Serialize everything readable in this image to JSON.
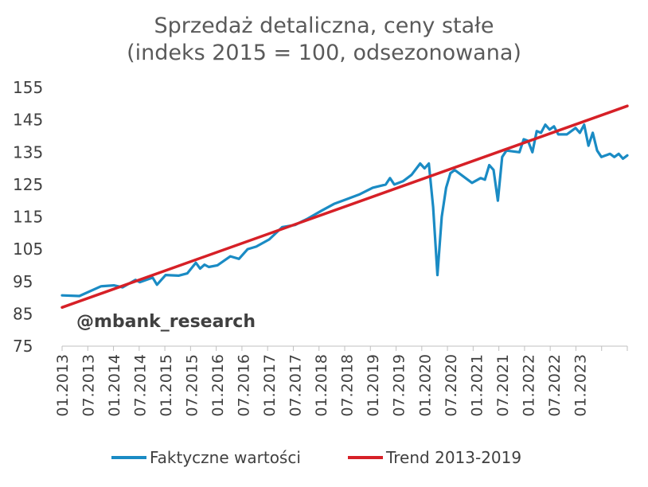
{
  "title_line1": "Sprzedaż detaliczna, ceny stałe",
  "title_line2": "(indeks 2015 = 100, odsezonowana)",
  "watermark": "@mbank_research",
  "colors": {
    "actual": "#1a8bc4",
    "trend": "#d62027",
    "axis": "#bfbfbf",
    "text": "#404040"
  },
  "chart_data": {
    "type": "line",
    "ylim": [
      75,
      155
    ],
    "yticks": [
      75,
      85,
      95,
      105,
      115,
      125,
      135,
      145,
      155
    ],
    "xlabels": [
      "01.2013",
      "07.2013",
      "01.2014",
      "07.2014",
      "01.2015",
      "07.2015",
      "01.2016",
      "07.2016",
      "01.2017",
      "07.2017",
      "01.2018",
      "07.2018",
      "01.2019",
      "07.2019",
      "01.2020",
      "07.2020",
      "01.2021",
      "07.2021",
      "01.2022",
      "07.2022",
      "01.2023"
    ],
    "x_start": "01.2013",
    "x_end": "12.2023",
    "series": [
      {
        "name": "Faktyczne wartości",
        "color": "#1a8bc4",
        "points": [
          [
            "01.2013",
            90.7
          ],
          [
            "05.2013",
            90.5
          ],
          [
            "10.2013",
            93.5
          ],
          [
            "01.2014",
            93.8
          ],
          [
            "03.2014",
            93.2
          ],
          [
            "06.2014",
            95.5
          ],
          [
            "07.2014",
            94.8
          ],
          [
            "10.2014",
            96.2
          ],
          [
            "11.2014",
            94.0
          ],
          [
            "01.2015",
            97.0
          ],
          [
            "04.2015",
            96.8
          ],
          [
            "06.2015",
            97.5
          ],
          [
            "08.2015",
            100.8
          ],
          [
            "09.2015",
            99.0
          ],
          [
            "10.2015",
            100.2
          ],
          [
            "11.2015",
            99.5
          ],
          [
            "01.2016",
            100.0
          ],
          [
            "04.2016",
            102.8
          ],
          [
            "06.2016",
            102.0
          ],
          [
            "08.2016",
            105.0
          ],
          [
            "10.2016",
            105.8
          ],
          [
            "01.2017",
            108.0
          ],
          [
            "04.2017",
            111.8
          ],
          [
            "07.2017",
            112.5
          ],
          [
            "10.2017",
            114.5
          ],
          [
            "01.2018",
            116.8
          ],
          [
            "04.2018",
            119.0
          ],
          [
            "07.2018",
            120.5
          ],
          [
            "10.2018",
            122.0
          ],
          [
            "01.2019",
            124.0
          ],
          [
            "04.2019",
            125.0
          ],
          [
            "05.2019",
            127.0
          ],
          [
            "06.2019",
            125.0
          ],
          [
            "08.2019",
            126.0
          ],
          [
            "10.2019",
            128.0
          ],
          [
            "12.2019",
            131.5
          ],
          [
            "01.2020",
            130.0
          ],
          [
            "02.2020",
            131.5
          ],
          [
            "03.2020",
            118.0
          ],
          [
            "04.2020",
            97.0
          ],
          [
            "05.2020",
            115.0
          ],
          [
            "06.2020",
            124.0
          ],
          [
            "07.2020",
            128.5
          ],
          [
            "08.2020",
            129.5
          ],
          [
            "10.2020",
            127.5
          ],
          [
            "12.2020",
            125.5
          ],
          [
            "02.2021",
            127.0
          ],
          [
            "03.2021",
            126.5
          ],
          [
            "04.2021",
            131.0
          ],
          [
            "05.2021",
            129.5
          ],
          [
            "06.2021",
            120.0
          ],
          [
            "07.2021",
            133.5
          ],
          [
            "08.2021",
            135.5
          ],
          [
            "11.2021",
            135.0
          ],
          [
            "12.2021",
            139.0
          ],
          [
            "01.2022",
            138.5
          ],
          [
            "02.2022",
            135.0
          ],
          [
            "03.2022",
            141.5
          ],
          [
            "04.2022",
            141.0
          ],
          [
            "05.2022",
            143.5
          ],
          [
            "06.2022",
            142.0
          ],
          [
            "07.2022",
            143.0
          ],
          [
            "08.2022",
            140.5
          ],
          [
            "10.2022",
            140.5
          ],
          [
            "12.2022",
            142.5
          ],
          [
            "01.2023",
            141.0
          ],
          [
            "02.2023",
            143.5
          ],
          [
            "03.2023",
            137.0
          ],
          [
            "04.2023",
            141.0
          ],
          [
            "05.2023",
            135.5
          ],
          [
            "06.2023",
            133.5
          ],
          [
            "07.2023",
            134.0
          ],
          [
            "08.2023",
            134.5
          ],
          [
            "09.2023",
            133.5
          ],
          [
            "10.2023",
            134.5
          ],
          [
            "11.2023",
            133.0
          ],
          [
            "12.2023",
            134.0
          ]
        ]
      },
      {
        "name": "Trend 2013-2019",
        "color": "#d62027",
        "points": [
          [
            "01.2013",
            87.0
          ],
          [
            "12.2023",
            149.3
          ]
        ]
      }
    ]
  }
}
